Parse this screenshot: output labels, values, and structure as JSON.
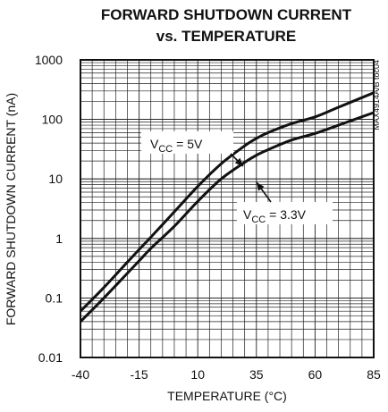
{
  "chart_data": {
    "type": "line",
    "title": "FORWARD SHUTDOWN CURRENT",
    "subtitle": "vs. TEMPERATURE",
    "xlabel": "TEMPERATURE (°C)",
    "ylabel": "FORWARD SHUTDOWN CURRENT (nA)",
    "side_note": "MAX4914A/B toc04",
    "xlim": [
      -40,
      85
    ],
    "ylim": [
      0.01,
      1000
    ],
    "yscale": "log",
    "grid": true,
    "x_ticks": [
      "-40",
      "-15",
      "10",
      "35",
      "60",
      "85"
    ],
    "y_ticks": [
      "0.01",
      "0.1",
      "1",
      "10",
      "100",
      "1000"
    ],
    "series": [
      {
        "name": "VCC = 5V",
        "label_main": "V",
        "label_sub": "CC",
        "label_rest": " = 5V",
        "x": [
          -40,
          -30,
          -20,
          -15,
          -10,
          0,
          10,
          20,
          30,
          35,
          40,
          50,
          60,
          70,
          85
        ],
        "y": [
          0.06,
          0.15,
          0.4,
          0.65,
          1.05,
          2.8,
          7.5,
          18,
          36,
          48,
          60,
          85,
          110,
          160,
          280
        ]
      },
      {
        "name": "VCC = 3.3V",
        "label_main": "V",
        "label_sub": "CC",
        "label_rest": " = 3.3V",
        "x": [
          -40,
          -30,
          -20,
          -15,
          -10,
          0,
          10,
          20,
          30,
          35,
          40,
          50,
          60,
          70,
          85
        ],
        "y": [
          0.04,
          0.1,
          0.26,
          0.42,
          0.68,
          1.6,
          4.2,
          10,
          19,
          25,
          31,
          45,
          58,
          80,
          130
        ]
      }
    ]
  }
}
